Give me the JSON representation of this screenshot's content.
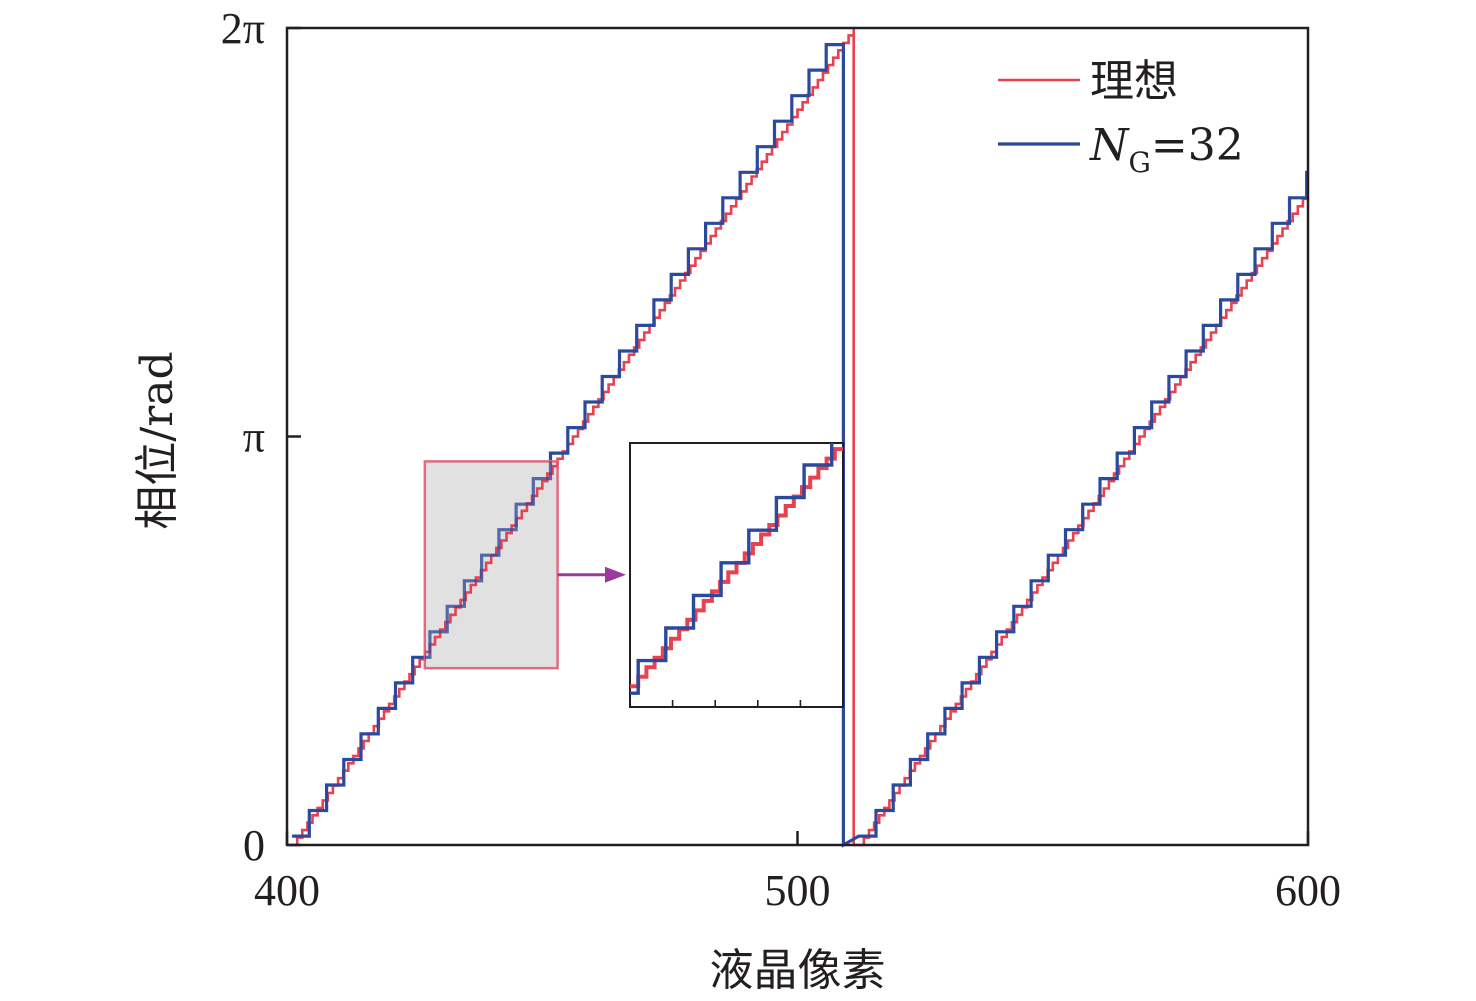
{
  "chart_data": {
    "type": "line",
    "xlabel": "液晶像素",
    "ylabel": "相位/rad",
    "xlim": [
      400,
      600
    ],
    "ylim": [
      0,
      6.2832
    ],
    "x_ticks": [
      "400",
      "500",
      "600"
    ],
    "y_ticks": [
      "0",
      "π",
      "2π"
    ],
    "grid": false,
    "legend_position": "top-right",
    "colors": {
      "ideal": "#e8414f",
      "quantized": "#2c4a9c",
      "inset_arrow": "#9b3a9c",
      "zoom_box_fill": "#dcdcdc",
      "zoom_box_stroke": "#e06a80"
    },
    "series": [
      {
        "name": "理想",
        "legend_label": "理想",
        "kind": "staircase",
        "period_pixels": 110,
        "wrap_start_x": 401,
        "wrap_x": 511,
        "phase_range": [
          0,
          6.2832
        ]
      },
      {
        "name": "N_G=32",
        "legend_label_main": "N",
        "legend_label_sub": "G",
        "legend_label_rest": "=32",
        "kind": "staircase",
        "quantization_levels": 32,
        "period_pixels": 110,
        "wrap_start_x": 401,
        "wrap_x": 509,
        "phase_range": [
          0,
          6.2832
        ]
      }
    ],
    "inset": {
      "zoom_x_range": [
        427,
        453
      ],
      "zoom_y_range": [
        1.36,
        2.95
      ]
    }
  }
}
